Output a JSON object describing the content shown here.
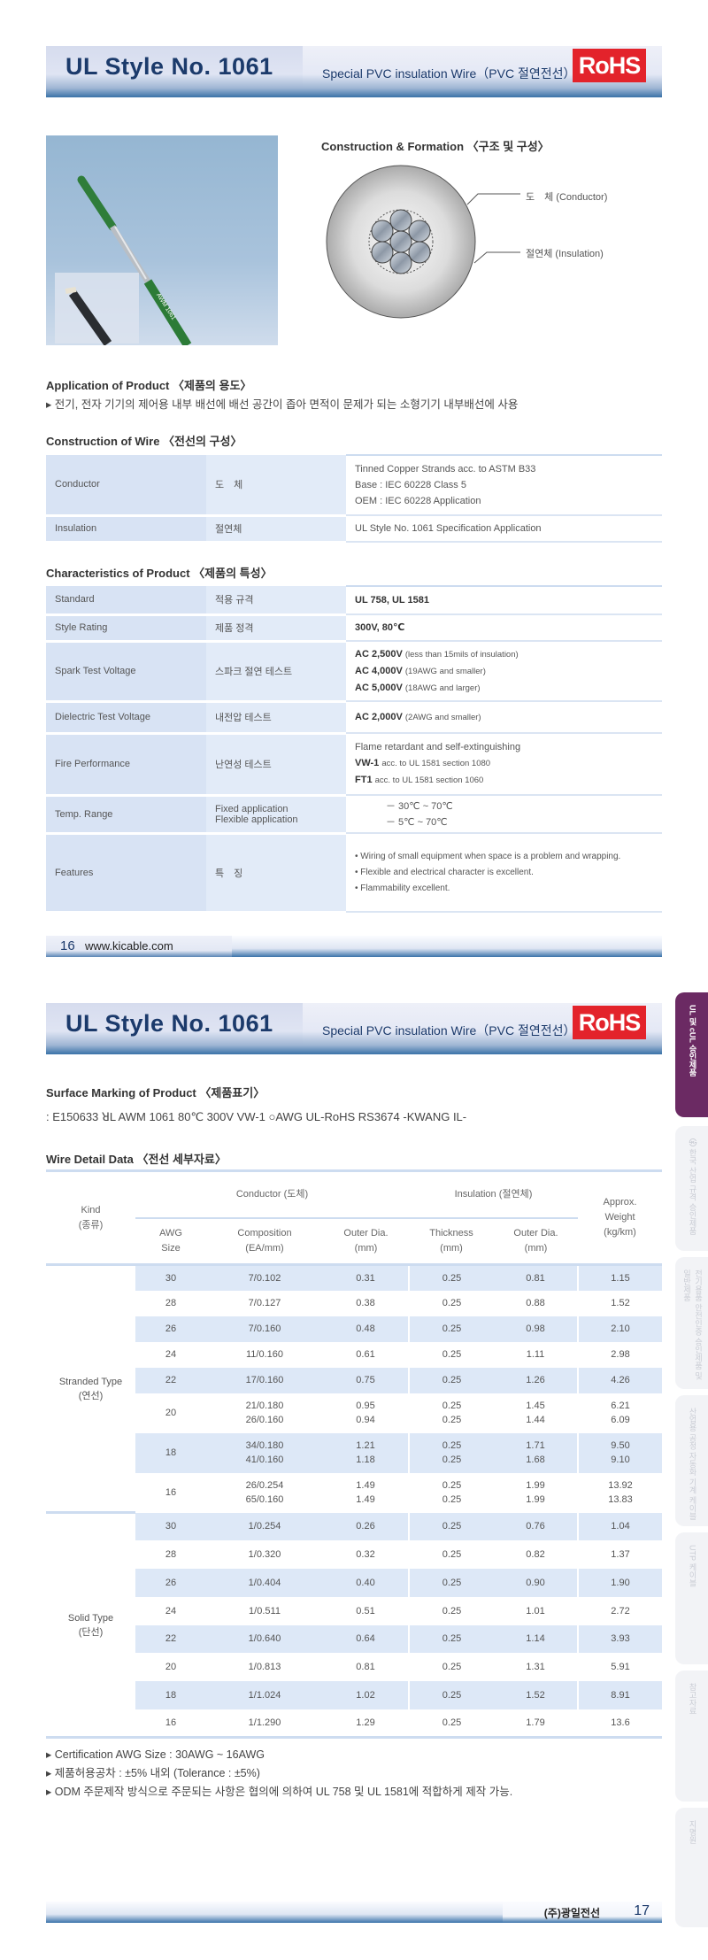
{
  "page1": {
    "header": {
      "title": "UL Style No. 1061",
      "subtitle": "Special PVC insulation Wire（PVC 절연전선）",
      "badge": "RoHS"
    },
    "photo": {
      "wire_print": "AWM 1061"
    },
    "formation": {
      "heading": "Construction & Formation 〈구조 및 구성〉",
      "conductor_label": "도　체 (Conductor)",
      "insulation_label": "절연체 (Insulation)"
    },
    "application": {
      "heading": "Application of Product 〈제품의 용도〉",
      "text": "전기, 전자 기기의 제어용 내부 배선에 배선 공간이 좁아 면적이 문제가 되는 소형기기 내부배선에 사용"
    },
    "construction": {
      "heading": "Construction of Wire 〈전선의 구성〉",
      "rows": [
        {
          "en": "Conductor",
          "ko": "도　체",
          "lines": [
            "Tinned Copper Strands acc. to ASTM B33",
            "Base : IEC 60228 Class 5",
            "OEM : IEC 60228 Application"
          ]
        },
        {
          "en": "Insulation",
          "ko": "절연체",
          "lines": [
            "UL Style No. 1061 Specification Application"
          ]
        }
      ]
    },
    "characteristics": {
      "heading": "Characteristics of Product 〈제품의 특성〉",
      "rows": [
        {
          "en": "Standard",
          "ko": "적용 규격",
          "lines": [
            {
              "bold": "UL 758, UL 1581",
              "text": ""
            }
          ]
        },
        {
          "en": "Style Rating",
          "ko": "제품 정격",
          "lines": [
            {
              "bold": "300V, 80℃",
              "text": ""
            }
          ]
        },
        {
          "en": "Spark Test Voltage",
          "ko": "스파크 절연 테스트",
          "lines": [
            {
              "bold": "AC 2,500V",
              "text": "(less than 15mils of insulation)"
            },
            {
              "bold": "AC 4,000V",
              "text": "(19AWG and smaller)"
            },
            {
              "bold": "AC 5,000V",
              "text": "(18AWG  and larger)"
            }
          ]
        },
        {
          "en": "Dielectric Test Voltage",
          "ko": "내전압 테스트",
          "lines": [
            {
              "bold": "AC 2,000V",
              "text": "(2AWG  and  smaller)"
            }
          ]
        },
        {
          "en": "Fire Performance",
          "ko": "난연성 테스트",
          "lines": [
            {
              "bold": "",
              "text": "Flame retardant and self-extinguishing"
            },
            {
              "bold": "VW-1",
              "text": "acc. to UL 1581 section 1080"
            },
            {
              "bold": "FT1",
              "text": "   acc. to UL 1581 section 1060"
            }
          ]
        },
        {
          "en": "Temp. Range",
          "ko_lines": [
            "Fixed application",
            "Flexible application"
          ],
          "lines": [
            {
              "bold": "",
              "text": "－ 30℃ ~ 70℃"
            },
            {
              "bold": "",
              "text": "－ 5℃ ~ 70℃"
            }
          ]
        },
        {
          "en": "Features",
          "ko": "특　징",
          "lines": [
            {
              "bold": "",
              "text": "• Wiring of small equipment when space is a problem and wrapping."
            },
            {
              "bold": "",
              "text": "• Flexible and electrical character is excellent."
            },
            {
              "bold": "",
              "text": "• Flammability excellent."
            }
          ]
        }
      ]
    },
    "footer": {
      "page": "16",
      "url": "www.kicable.com"
    }
  },
  "page2": {
    "header": {
      "title": "UL Style No. 1061",
      "subtitle": "Special PVC insulation Wire（PVC 절연전선）",
      "badge": "RoHS"
    },
    "surface": {
      "heading": "Surface Marking  of Product 〈제품표기〉",
      "text": ": E150633 ꓤL AWM 1061  80℃ 300V VW-1 ○AWG  UL-RoHS RS3674   -KWANG IL-"
    },
    "wire_detail": {
      "heading": "Wire Detail Data 〈전선 세부자료〉",
      "headers": {
        "kind": "Kind",
        "kind_ko": "(종류)",
        "conductor": "Conductor (도체)",
        "insulation": "Insulation (절연체)",
        "weight": [
          "Approx.",
          "Weight",
          "(kg/km)"
        ],
        "awg": [
          "AWG",
          "Size"
        ],
        "composition": [
          "Composition",
          "(EA/mm)"
        ],
        "outer": [
          "Outer Dia.",
          "(mm)"
        ],
        "thickness": [
          "Thickness",
          "(mm)"
        ],
        "ins_outer": [
          "Outer Dia.",
          "(mm)"
        ]
      },
      "groups": [
        {
          "kind": "Stranded Type",
          "kind_ko": "(연선)",
          "rows": [
            {
              "awg": "30",
              "comp": [
                "7/0.102"
              ],
              "od": [
                "0.31"
              ],
              "th": [
                "0.25"
              ],
              "iod": [
                "0.81"
              ],
              "wt": [
                "1.15"
              ]
            },
            {
              "awg": "28",
              "comp": [
                "7/0.127"
              ],
              "od": [
                "0.38"
              ],
              "th": [
                "0.25"
              ],
              "iod": [
                "0.88"
              ],
              "wt": [
                "1.52"
              ]
            },
            {
              "awg": "26",
              "comp": [
                "7/0.160"
              ],
              "od": [
                "0.48"
              ],
              "th": [
                "0.25"
              ],
              "iod": [
                "0.98"
              ],
              "wt": [
                "2.10"
              ]
            },
            {
              "awg": "24",
              "comp": [
                "11/0.160"
              ],
              "od": [
                "0.61"
              ],
              "th": [
                "0.25"
              ],
              "iod": [
                "1.11"
              ],
              "wt": [
                "2.98"
              ]
            },
            {
              "awg": "22",
              "comp": [
                "17/0.160"
              ],
              "od": [
                "0.75"
              ],
              "th": [
                "0.25"
              ],
              "iod": [
                "1.26"
              ],
              "wt": [
                "4.26"
              ]
            },
            {
              "awg": "20",
              "comp": [
                "21/0.180",
                "26/0.160"
              ],
              "od": [
                "0.95",
                "0.94"
              ],
              "th": [
                "0.25",
                "0.25"
              ],
              "iod": [
                "1.45",
                "1.44"
              ],
              "wt": [
                "6.21",
                "6.09"
              ]
            },
            {
              "awg": "18",
              "comp": [
                "34/0.180",
                "41/0.160"
              ],
              "od": [
                "1.21",
                "1.18"
              ],
              "th": [
                "0.25",
                "0.25"
              ],
              "iod": [
                "1.71",
                "1.68"
              ],
              "wt": [
                "9.50",
                "9.10"
              ]
            },
            {
              "awg": "16",
              "comp": [
                "26/0.254",
                "65/0.160"
              ],
              "od": [
                "1.49",
                "1.49"
              ],
              "th": [
                "0.25",
                "0.25"
              ],
              "iod": [
                "1.99",
                "1.99"
              ],
              "wt": [
                "13.92",
                "13.83"
              ]
            }
          ]
        },
        {
          "kind": "Solid Type",
          "kind_ko": "(단선)",
          "rows": [
            {
              "awg": "30",
              "comp": [
                "1/0.254"
              ],
              "od": [
                "0.26"
              ],
              "th": [
                "0.25"
              ],
              "iod": [
                "0.76"
              ],
              "wt": [
                "1.04"
              ]
            },
            {
              "awg": "28",
              "comp": [
                "1/0.320"
              ],
              "od": [
                "0.32"
              ],
              "th": [
                "0.25"
              ],
              "iod": [
                "0.82"
              ],
              "wt": [
                "1.37"
              ]
            },
            {
              "awg": "26",
              "comp": [
                "1/0.404"
              ],
              "od": [
                "0.40"
              ],
              "th": [
                "0.25"
              ],
              "iod": [
                "0.90"
              ],
              "wt": [
                "1.90"
              ]
            },
            {
              "awg": "24",
              "comp": [
                "1/0.511"
              ],
              "od": [
                "0.51"
              ],
              "th": [
                "0.25"
              ],
              "iod": [
                "1.01"
              ],
              "wt": [
                "2.72"
              ]
            },
            {
              "awg": "22",
              "comp": [
                "1/0.640"
              ],
              "od": [
                "0.64"
              ],
              "th": [
                "0.25"
              ],
              "iod": [
                "1.14"
              ],
              "wt": [
                "3.93"
              ]
            },
            {
              "awg": "20",
              "comp": [
                "1/0.813"
              ],
              "od": [
                "0.81"
              ],
              "th": [
                "0.25"
              ],
              "iod": [
                "1.31"
              ],
              "wt": [
                "5.91"
              ]
            },
            {
              "awg": "18",
              "comp": [
                "1/1.024"
              ],
              "od": [
                "1.02"
              ],
              "th": [
                "0.25"
              ],
              "iod": [
                "1.52"
              ],
              "wt": [
                "8.91"
              ]
            },
            {
              "awg": "16",
              "comp": [
                "1/1.290"
              ],
              "od": [
                "1.29"
              ],
              "th": [
                "0.25"
              ],
              "iod": [
                "1.79"
              ],
              "wt": [
                "13.6"
              ]
            }
          ]
        }
      ]
    },
    "notes": [
      "Certification AWG Size : 30AWG ~ 16AWG",
      "제품허용공차 : ±5% 내외 (Tolerance : ±5%)",
      "ODM 주문제작 방식으로 주문되는 사항은 협의에 의하여 UL 758 및 UL 1581에 적합하게 제작 가능."
    ],
    "footer": {
      "company": "(주)광일전선",
      "page": "17"
    }
  },
  "side_tabs": [
    {
      "label": "UL 및 cUL 승인제품",
      "active": true
    },
    {
      "label": "㉿ 한국 산업 규격 승인제품",
      "active": false
    },
    {
      "label": "전기용품 안전인증 승인제품 및 일반제품",
      "active": false
    },
    {
      "label": "산업용 공정 자동화 기계 케이블",
      "active": false
    },
    {
      "label": "UTP 케이블",
      "active": false
    },
    {
      "label": "참고자료",
      "active": false
    },
    {
      "label": "지명원",
      "active": false
    }
  ],
  "colors": {
    "brand_navy": "#1b3a6b",
    "rohs_red": "#e3232b",
    "active_tab": "#6b2a63",
    "table_blue": "#dde8f7"
  }
}
